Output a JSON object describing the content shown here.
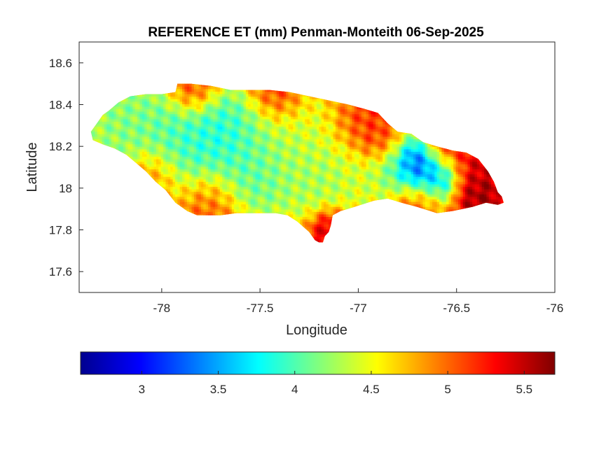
{
  "chart_data": {
    "type": "heatmap",
    "title": "REFERENCE ET (mm) Penman-Monteith 06-Sep-2025",
    "xlabel": "Longitude",
    "ylabel": "Latitude",
    "xlim": [
      -78.42,
      -76.0
    ],
    "ylim": [
      17.5,
      18.7
    ],
    "xticks": [
      -78,
      -77.5,
      -77,
      -76.5,
      -76
    ],
    "xtick_labels": [
      "-78",
      "-77.5",
      "-77",
      "-76.5",
      "-76"
    ],
    "yticks": [
      17.6,
      17.8,
      18.0,
      18.2,
      18.4,
      18.6
    ],
    "ytick_labels": [
      "17.6",
      "17.8",
      "18",
      "18.2",
      "18.4",
      "18.6"
    ],
    "colormap": "jet",
    "colorbar": {
      "location": "bottom",
      "range": [
        2.6,
        5.7
      ],
      "ticks": [
        3,
        3.5,
        4,
        4.5,
        5,
        5.5
      ],
      "tick_labels": [
        "3",
        "3.5",
        "4",
        "4.5",
        "5",
        "5.5"
      ]
    },
    "grid": false,
    "outline": [
      [
        -78.36,
        18.27
      ],
      [
        -78.33,
        18.31
      ],
      [
        -78.3,
        18.35
      ],
      [
        -78.27,
        18.37
      ],
      [
        -78.22,
        18.41
      ],
      [
        -78.16,
        18.44
      ],
      [
        -78.08,
        18.45
      ],
      [
        -78.0,
        18.45
      ],
      [
        -77.93,
        18.46
      ],
      [
        -77.92,
        18.5
      ],
      [
        -77.85,
        18.5
      ],
      [
        -77.75,
        18.49
      ],
      [
        -77.65,
        18.47
      ],
      [
        -77.55,
        18.47
      ],
      [
        -77.45,
        18.47
      ],
      [
        -77.35,
        18.46
      ],
      [
        -77.25,
        18.44
      ],
      [
        -77.15,
        18.42
      ],
      [
        -77.05,
        18.4
      ],
      [
        -76.97,
        18.38
      ],
      [
        -76.9,
        18.36
      ],
      [
        -76.85,
        18.31
      ],
      [
        -76.8,
        18.27
      ],
      [
        -76.73,
        18.26
      ],
      [
        -76.67,
        18.22
      ],
      [
        -76.6,
        18.2
      ],
      [
        -76.52,
        18.18
      ],
      [
        -76.45,
        18.17
      ],
      [
        -76.39,
        18.14
      ],
      [
        -76.34,
        18.08
      ],
      [
        -76.31,
        18.03
      ],
      [
        -76.29,
        17.98
      ],
      [
        -76.27,
        17.96
      ],
      [
        -76.26,
        17.93
      ],
      [
        -76.29,
        17.92
      ],
      [
        -76.35,
        17.93
      ],
      [
        -76.42,
        17.91
      ],
      [
        -76.52,
        17.89
      ],
      [
        -76.6,
        17.88
      ],
      [
        -76.7,
        17.91
      ],
      [
        -76.78,
        17.93
      ],
      [
        -76.85,
        17.95
      ],
      [
        -76.92,
        17.94
      ],
      [
        -77.02,
        17.91
      ],
      [
        -77.09,
        17.89
      ],
      [
        -77.13,
        17.87
      ],
      [
        -77.14,
        17.82
      ],
      [
        -77.15,
        17.79
      ],
      [
        -77.17,
        17.77
      ],
      [
        -77.18,
        17.74
      ],
      [
        -77.2,
        17.74
      ],
      [
        -77.22,
        17.75
      ],
      [
        -77.25,
        17.79
      ],
      [
        -77.31,
        17.84
      ],
      [
        -77.36,
        17.87
      ],
      [
        -77.42,
        17.88
      ],
      [
        -77.52,
        17.88
      ],
      [
        -77.62,
        17.88
      ],
      [
        -77.7,
        17.87
      ],
      [
        -77.76,
        17.87
      ],
      [
        -77.82,
        17.87
      ],
      [
        -77.87,
        17.89
      ],
      [
        -77.93,
        17.93
      ],
      [
        -77.98,
        17.99
      ],
      [
        -78.03,
        18.03
      ],
      [
        -78.08,
        18.08
      ],
      [
        -78.13,
        18.12
      ],
      [
        -78.18,
        18.16
      ],
      [
        -78.24,
        18.19
      ],
      [
        -78.3,
        18.21
      ],
      [
        -78.35,
        18.23
      ]
    ],
    "field": [
      {
        "lon": -78.2,
        "lat": 18.32,
        "value": 4.1,
        "spread": 0.12
      },
      {
        "lon": -77.9,
        "lat": 18.22,
        "value": 3.9,
        "spread": 0.15
      },
      {
        "lon": -77.7,
        "lat": 18.22,
        "value": 3.7,
        "spread": 0.12
      },
      {
        "lon": -77.45,
        "lat": 18.15,
        "value": 4.2,
        "spread": 0.15
      },
      {
        "lon": -77.55,
        "lat": 18.05,
        "value": 3.9,
        "spread": 0.1
      },
      {
        "lon": -77.2,
        "lat": 18.05,
        "value": 4.2,
        "spread": 0.12
      },
      {
        "lon": -77.25,
        "lat": 18.3,
        "value": 4.4,
        "spread": 0.12
      },
      {
        "lon": -76.95,
        "lat": 18.03,
        "value": 4.4,
        "spread": 0.1
      },
      {
        "lon": -76.82,
        "lat": 18.1,
        "value": 3.8,
        "spread": 0.08
      },
      {
        "lon": -76.72,
        "lat": 18.1,
        "value": 2.9,
        "spread": 0.06
      },
      {
        "lon": -76.62,
        "lat": 18.06,
        "value": 3.2,
        "spread": 0.08
      },
      {
        "lon": -76.55,
        "lat": 18.18,
        "value": 5.4,
        "spread": 0.07
      },
      {
        "lon": -76.4,
        "lat": 18.1,
        "value": 5.5,
        "spread": 0.07
      },
      {
        "lon": -76.4,
        "lat": 17.96,
        "value": 5.7,
        "spread": 0.07
      },
      {
        "lon": -77.15,
        "lat": 17.8,
        "value": 5.6,
        "spread": 0.06
      },
      {
        "lon": -77.0,
        "lat": 18.33,
        "value": 5.2,
        "spread": 0.1
      },
      {
        "lon": -77.85,
        "lat": 18.46,
        "value": 5.3,
        "spread": 0.07
      },
      {
        "lon": -77.75,
        "lat": 17.93,
        "value": 5.1,
        "spread": 0.1
      },
      {
        "lon": -78.05,
        "lat": 18.05,
        "value": 5.0,
        "spread": 0.08
      },
      {
        "lon": -76.9,
        "lat": 18.2,
        "value": 5.3,
        "spread": 0.06
      },
      {
        "lon": -77.4,
        "lat": 18.44,
        "value": 5.3,
        "spread": 0.08
      },
      {
        "lon": -76.7,
        "lat": 17.92,
        "value": 5.1,
        "spread": 0.08
      }
    ]
  }
}
